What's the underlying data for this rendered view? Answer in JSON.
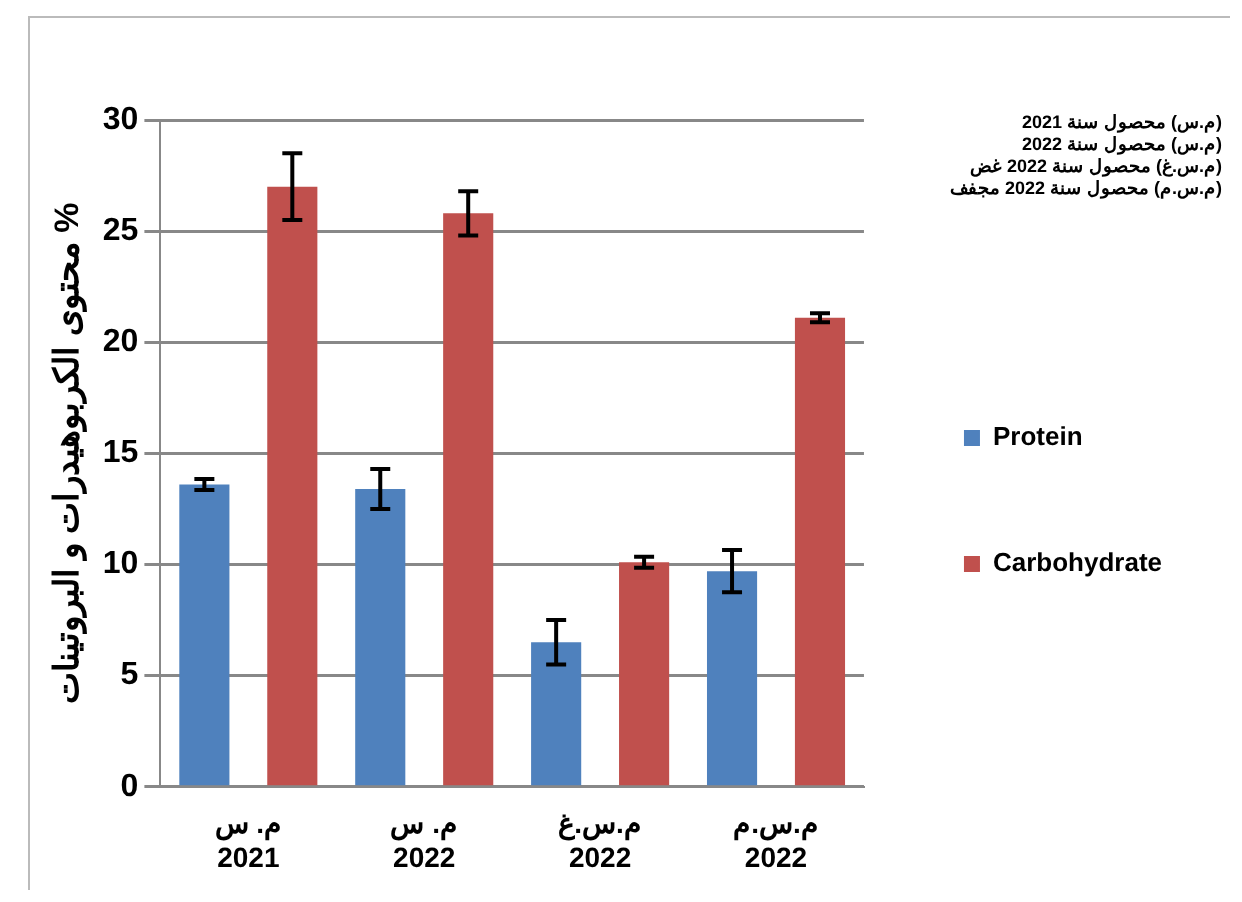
{
  "chart_data": {
    "type": "bar",
    "ylabel": "محتوى الكربوهيدرات و البروتينات %",
    "categories": [
      "م. س\n2021",
      "م. س\n2022",
      "م.س.غ\n2022",
      "م.س.م\n2022"
    ],
    "series": [
      {
        "name": "Protein",
        "color": "#4f81bd",
        "values": [
          13.6,
          13.4,
          6.5,
          9.7
        ],
        "errors": [
          0.25,
          0.9,
          1.0,
          0.95
        ]
      },
      {
        "name": "Carbohydrate",
        "color": "#c0504d",
        "values": [
          27.0,
          25.8,
          10.1,
          21.1
        ],
        "errors": [
          1.5,
          1.0,
          0.25,
          0.2
        ]
      }
    ],
    "ylim": [
      0,
      30
    ],
    "yticks": [
      0,
      5,
      10,
      15,
      20,
      25,
      30
    ],
    "grid": "y",
    "legend": "right",
    "annotations": [
      "(م.س) محصول سنة 2021",
      "(م.س) محصول سنة 2022",
      "(م.س.غ) محصول سنة 2022 غض",
      "(م.س.م) محصول سنة 2022 مجفف"
    ]
  }
}
